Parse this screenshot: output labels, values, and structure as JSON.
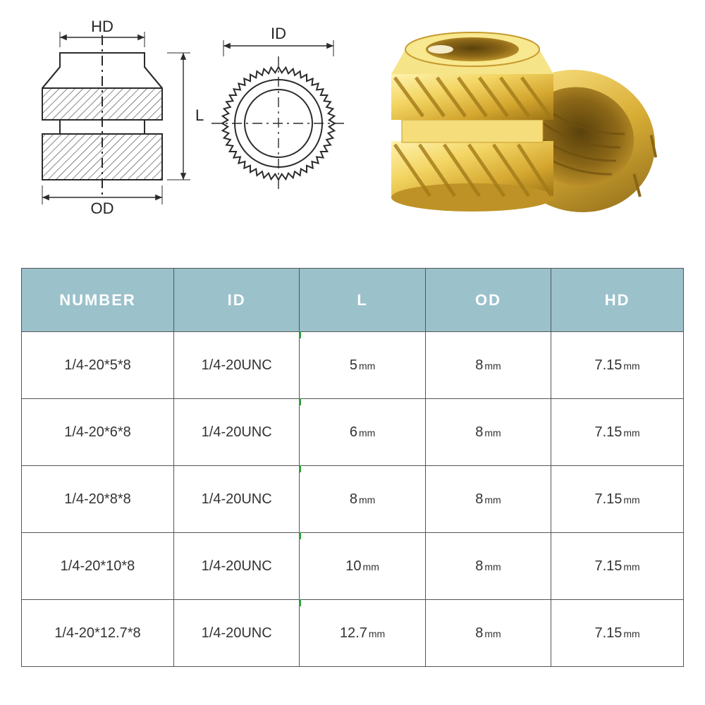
{
  "diagram": {
    "labels": {
      "hd": "HD",
      "id": "ID",
      "l": "L",
      "od": "OD"
    },
    "line_color": "#2b2b2b",
    "hatch_color": "#3a3a3a"
  },
  "table": {
    "header_bg": "#9bc1cb",
    "header_fg": "#ffffff",
    "border_color": "#555555",
    "tick_color": "#2e9e3a",
    "columns": [
      "NUMBER",
      "ID",
      "L",
      "OD",
      "HD"
    ],
    "unit": "mm",
    "rows": [
      {
        "number": "1/4-20*5*8",
        "id": "1/4-20UNC",
        "l": "5",
        "od": "8",
        "hd": "7.15"
      },
      {
        "number": "1/4-20*6*8",
        "id": "1/4-20UNC",
        "l": "6",
        "od": "8",
        "hd": "7.15"
      },
      {
        "number": "1/4-20*8*8",
        "id": "1/4-20UNC",
        "l": "8",
        "od": "8",
        "hd": "7.15"
      },
      {
        "number": "1/4-20*10*8",
        "id": "1/4-20UNC",
        "l": "10",
        "od": "8",
        "hd": "7.15"
      },
      {
        "number": "1/4-20*12.7*8",
        "id": "1/4-20UNC",
        "l": "12.7",
        "od": "8",
        "hd": "7.15"
      }
    ]
  },
  "photo": {
    "brass_light": "#f7e07a",
    "brass_mid": "#e0b93a",
    "brass_dark": "#b8860b",
    "brass_shadow": "#7a5a10"
  }
}
